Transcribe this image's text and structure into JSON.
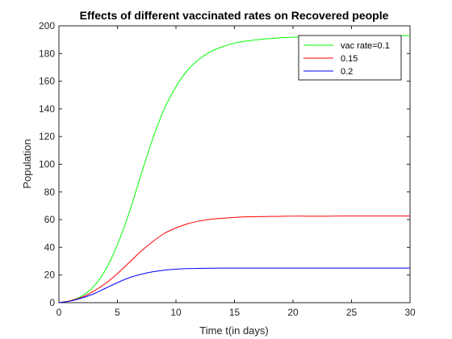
{
  "chart_data": {
    "type": "line",
    "title": "Effects of different vaccinated rates on Recovered people",
    "xlabel": "Time t(in days)",
    "ylabel": "Population",
    "xlim": [
      0,
      30
    ],
    "ylim": [
      0,
      200
    ],
    "xticks": [
      "0",
      "5",
      "10",
      "15",
      "20",
      "25",
      "30"
    ],
    "yticks": [
      "0",
      "20",
      "40",
      "60",
      "80",
      "100",
      "120",
      "140",
      "160",
      "180",
      "200"
    ],
    "grid": false,
    "legend_position": "top-right",
    "x": [
      0,
      1,
      2,
      3,
      4,
      5,
      6,
      7,
      8,
      9,
      10,
      11,
      12,
      13,
      14,
      15,
      16,
      17,
      18,
      19,
      20,
      21,
      22,
      23,
      24,
      25,
      26,
      27,
      28,
      29,
      30
    ],
    "series": [
      {
        "name": "vac rate=0.1",
        "color": "#00ff00",
        "values": [
          0,
          1.5,
          5,
          12,
          24,
          42,
          65,
          92,
          118,
          140,
          156,
          168,
          176,
          181.5,
          185,
          187.5,
          189,
          190,
          190.8,
          191.4,
          191.8,
          192.1,
          192.3,
          192.5,
          192.6,
          192.7,
          192.8,
          192.8,
          192.9,
          192.9,
          193
        ]
      },
      {
        "name": "0.15",
        "color": "#ff0000",
        "values": [
          0,
          1.5,
          4,
          8.5,
          14,
          21,
          29,
          37,
          44,
          50,
          54,
          57,
          59,
          60.3,
          61,
          61.6,
          62,
          62.2,
          62.3,
          62.4,
          62.5,
          62.5,
          62.5,
          62.5,
          62.6,
          62.6,
          62.6,
          62.6,
          62.6,
          62.6,
          62.6
        ]
      },
      {
        "name": "0.2",
        "color": "#0000ff",
        "values": [
          0,
          1.2,
          3.5,
          6.5,
          10.5,
          14.5,
          18,
          20.5,
          22.3,
          23.5,
          24.2,
          24.6,
          24.8,
          24.9,
          25,
          25,
          25,
          25,
          25,
          25,
          25,
          25,
          25,
          25,
          25,
          25,
          25,
          25,
          25,
          25,
          25
        ]
      }
    ]
  }
}
